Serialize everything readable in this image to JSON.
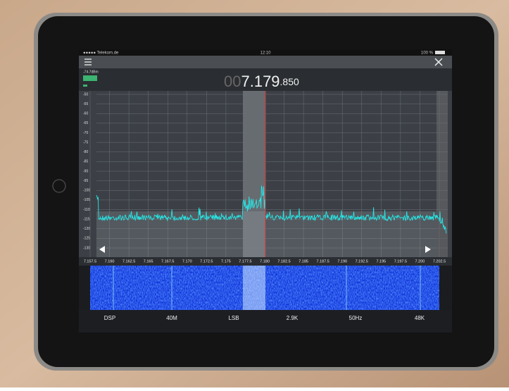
{
  "status_bar": {
    "carrier": "●●●●● Telekom.de",
    "time": "12:10",
    "battery": "100 %"
  },
  "meter": {
    "level": "-74.7dBm"
  },
  "frequency": {
    "prefix": "00",
    "main": "7.179",
    "suffix": ".850"
  },
  "spectrum": {
    "db_labels": [
      "-50",
      "-55",
      "-60",
      "-65",
      "-70",
      "-75",
      "-80",
      "-85",
      "-90",
      "-95",
      "-100",
      "-105",
      "-110",
      "-115",
      "-120",
      "-125",
      "-130"
    ],
    "freq_labels": [
      "7.157.5",
      "7.160",
      "7.162.5",
      "7.165",
      "7.167.5",
      "7.170",
      "7.172.5",
      "7.175",
      "7.177.5",
      "7.180",
      "7.182.5",
      "7.185",
      "7.187.5",
      "7.190",
      "7.192.5",
      "7.195",
      "7.197.5",
      "7.200",
      "7.202.5"
    ]
  },
  "bottom_bar": [
    "DSP",
    "40M",
    "LSB",
    "2.9K",
    "50Hz",
    "48K"
  ]
}
